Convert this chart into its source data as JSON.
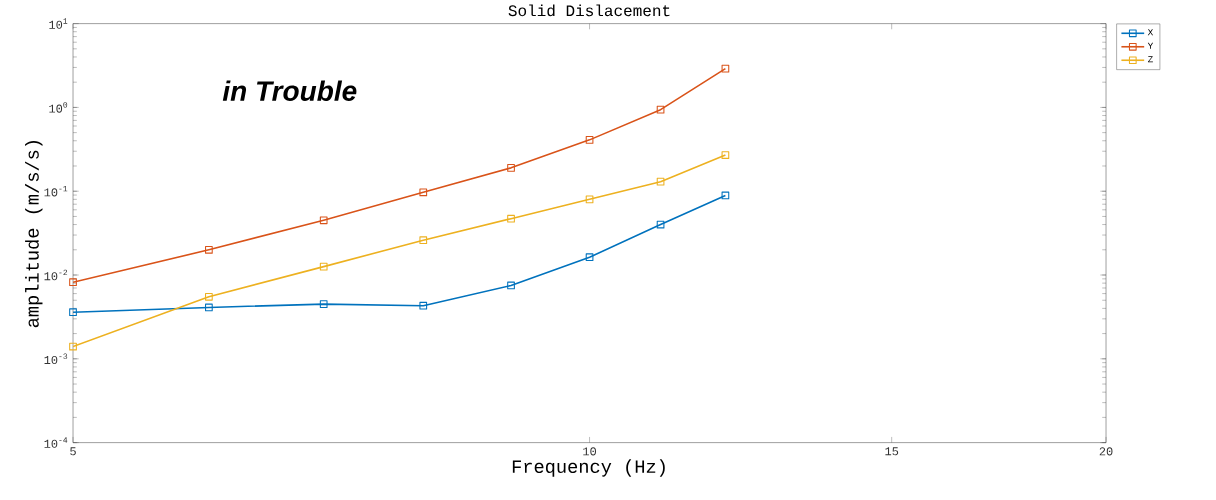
{
  "chart_data": {
    "type": "line",
    "title": "Solid Dislacement",
    "xlabel": "Frequency (Hz)",
    "ylabel": "amplitude (m/s/s)",
    "annotations": [
      "in Trouble"
    ],
    "x": [
      5,
      6,
      7,
      8,
      9,
      10,
      11,
      12
    ],
    "series": [
      {
        "name": "X",
        "color": "#0072bd",
        "values": [
          0.0036,
          0.0041,
          0.0045,
          0.0043,
          0.0075,
          0.0163,
          0.04,
          0.089
        ]
      },
      {
        "name": "Y",
        "color": "#d95319",
        "values": [
          0.0082,
          0.02,
          0.045,
          0.097,
          0.19,
          0.41,
          0.94,
          2.9
        ]
      },
      {
        "name": "Z",
        "color": "#edb120",
        "values": [
          0.0014,
          0.0055,
          0.0126,
          0.026,
          0.047,
          0.08,
          0.13,
          0.27
        ]
      }
    ],
    "log": "xy",
    "xlim": [
      5,
      20
    ],
    "ylim": [
      0.0001,
      10
    ],
    "xticks": [
      5,
      10,
      15,
      20
    ],
    "yticks": [
      {
        "value": 0.0001,
        "label": "10$^{-4}$"
      },
      {
        "value": 0.001,
        "label": "10$^{-3}$"
      },
      {
        "value": 0.01,
        "label": "10$^{-2}$"
      },
      {
        "value": 0.1,
        "label": "10$^{-1}$"
      },
      {
        "value": 1,
        "label": "10$^{0}$"
      },
      {
        "value": 10,
        "label": "10$^{1}$"
      }
    ],
    "grid": false,
    "legend": "top right",
    "marker": "square",
    "line_style": "solid"
  }
}
